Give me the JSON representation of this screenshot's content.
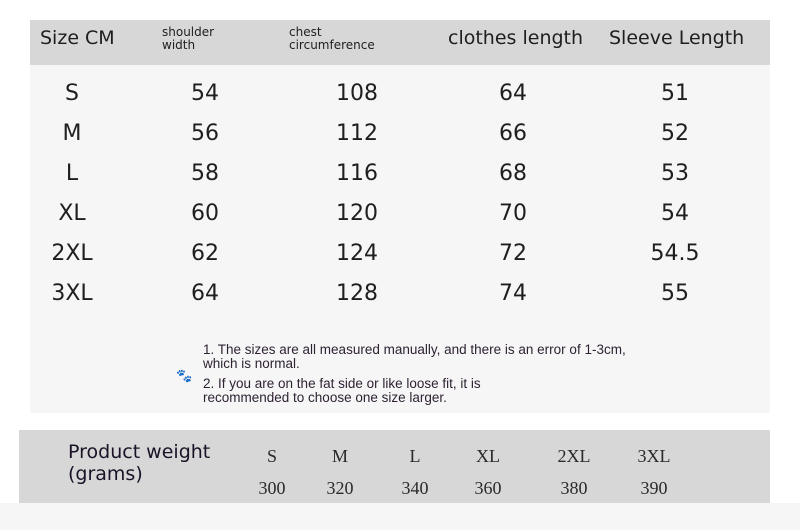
{
  "header": {
    "size": "Size CM",
    "shoulder": [
      "shoulder",
      "width"
    ],
    "chest": [
      "chest",
      "circumference"
    ],
    "clothes": "clothes length",
    "sleeve": "Sleeve Length"
  },
  "rows": [
    {
      "size": "S",
      "shoulder": "54",
      "chest": "108",
      "clothes": "64",
      "sleeve": "51"
    },
    {
      "size": "M",
      "shoulder": "56",
      "chest": "112",
      "clothes": "66",
      "sleeve": "52"
    },
    {
      "size": "L",
      "shoulder": "58",
      "chest": "116",
      "clothes": "68",
      "sleeve": "53"
    },
    {
      "size": "XL",
      "shoulder": "60",
      "chest": "120",
      "clothes": "70",
      "sleeve": "54"
    },
    {
      "size": "2XL",
      "shoulder": "62",
      "chest": "124",
      "clothes": "72",
      "sleeve": "54.5"
    },
    {
      "size": "3XL",
      "shoulder": "64",
      "chest": "128",
      "clothes": "74",
      "sleeve": "55"
    }
  ],
  "notes": [
    "1. The sizes are all measured manually, and there is an error of 1-3cm, which is normal.",
    "2. If you are on the fat side or like loose fit, it is recommended to choose one size larger."
  ],
  "weight": {
    "label": [
      "Product weight",
      "(grams)"
    ],
    "sizes": [
      "S",
      "M",
      "L",
      "XL",
      "2XL",
      "3XL"
    ],
    "values": [
      "300",
      "320",
      "340",
      "360",
      "380",
      "390"
    ]
  },
  "icons": {
    "paw": "paw-icon"
  }
}
